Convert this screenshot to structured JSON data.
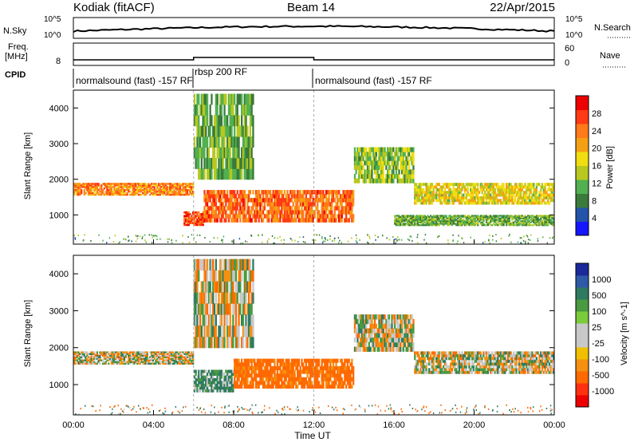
{
  "header": {
    "site": "Kodiak (fitACF)",
    "beam": "Beam 14",
    "date": "22/Apr/2015"
  },
  "top_panels": {
    "nsky_label": "N.Sky",
    "nsearch_label": "N.Search",
    "noise_ticks": [
      "10^5",
      "10^0"
    ],
    "noise_ticks_right": [
      "10^5",
      "10^0"
    ],
    "freq_label": "Freq.",
    "freq_unit": "[MHz]",
    "freq_tick": "8",
    "nave_label": "Nave",
    "nave_ticks": [
      "60",
      "0"
    ],
    "cpid_label": "CPID",
    "cpid_segments": [
      {
        "label": "normalsound (fast) -157 RF",
        "start": "00:00",
        "end": "06:00"
      },
      {
        "label": "rbsp 200 RF",
        "start": "06:00",
        "end": "12:00"
      },
      {
        "label": "normalsound (fast) -157 RF",
        "start": "12:00",
        "end": "24:00"
      }
    ]
  },
  "axes": {
    "ylabel": "Slant Range [km]",
    "xlabel": "Time UT",
    "xticks": [
      "00:00",
      "04:00",
      "08:00",
      "12:00",
      "16:00",
      "20:00",
      "00:00"
    ],
    "yticks": [
      "1000",
      "2000",
      "3000",
      "4000"
    ]
  },
  "power_colorbar": {
    "label": "Power [dB]",
    "ticks": [
      "28",
      "24",
      "20",
      "16",
      "12",
      "8",
      "4"
    ],
    "colors": [
      "#1515ff",
      "#2255aa",
      "#3a7a3a",
      "#52b050",
      "#b8c820",
      "#f2de10",
      "#f5a014",
      "#ff7a1a",
      "#ff3a14",
      "#ee0000"
    ]
  },
  "velocity_colorbar": {
    "label": "Velocity [m s^-1]",
    "ticks": [
      "1000",
      "500",
      "100",
      "25",
      "-25",
      "-100",
      "-500",
      "-1000"
    ],
    "colors": [
      "#1a2a9a",
      "#2f5aa8",
      "#2f7a60",
      "#4a9a40",
      "#7acc3a",
      "#c8c8c8",
      "#c8c8c8",
      "#f0c000",
      "#f59010",
      "#ff6a00",
      "#ff3010",
      "#ee0000"
    ]
  },
  "chart_data": [
    {
      "type": "heatmap",
      "title": "Power [dB]",
      "xlabel": "Time UT",
      "ylabel": "Slant Range [km]",
      "xlim": [
        0,
        24
      ],
      "ylim": [
        180,
        4500
      ],
      "zlim": [
        0,
        30
      ],
      "bands": [
        {
          "t_start": 0,
          "t_end": 6,
          "range_low": 1550,
          "range_high": 1900,
          "power": 22
        },
        {
          "t_start": 5.5,
          "t_end": 6.5,
          "range_low": 700,
          "range_high": 1100,
          "power": 26
        },
        {
          "t_start": 6.5,
          "t_end": 14,
          "range_low": 800,
          "range_high": 1700,
          "power": 24
        },
        {
          "t_start": 6,
          "t_end": 9,
          "range_low": 2000,
          "range_high": 4400,
          "power": 10
        },
        {
          "t_start": 14,
          "t_end": 17,
          "range_low": 1900,
          "range_high": 2900,
          "power": 12
        },
        {
          "t_start": 17,
          "t_end": 24,
          "range_low": 1300,
          "range_high": 1900,
          "power": 16
        },
        {
          "t_start": 16,
          "t_end": 24,
          "range_low": 700,
          "range_high": 1000,
          "power": 10
        }
      ]
    },
    {
      "type": "heatmap",
      "title": "Velocity [m s^-1]",
      "xlabel": "Time UT",
      "ylabel": "Slant Range [km]",
      "xlim": [
        0,
        24
      ],
      "ylim": [
        180,
        4500
      ],
      "zlim": [
        -1000,
        1000
      ],
      "bands": [
        {
          "t_start": 0,
          "t_end": 6,
          "range_low": 1550,
          "range_high": 1900,
          "velocity": 0
        },
        {
          "t_start": 6,
          "t_end": 8,
          "range_low": 800,
          "range_high": 1400,
          "velocity": 120
        },
        {
          "t_start": 8,
          "t_end": 14,
          "range_low": 900,
          "range_high": 1700,
          "velocity": -200
        },
        {
          "t_start": 6,
          "t_end": 9,
          "range_low": 2000,
          "range_high": 4400,
          "velocity": 0
        },
        {
          "t_start": 14,
          "t_end": 17,
          "range_low": 1900,
          "range_high": 2900,
          "velocity": 0
        },
        {
          "t_start": 17,
          "t_end": 24,
          "range_low": 1300,
          "range_high": 1900,
          "velocity": 0
        }
      ]
    }
  ]
}
